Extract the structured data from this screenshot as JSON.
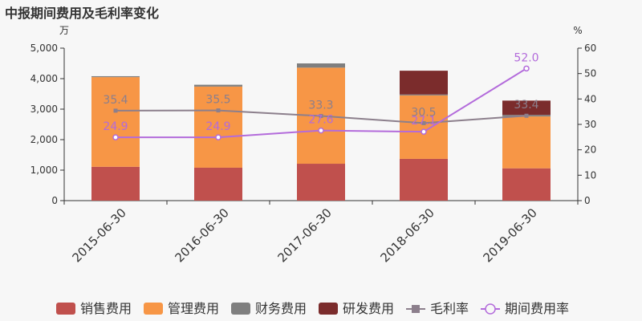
{
  "title": "中报期间费用及毛利率变化",
  "chart_data": {
    "type": "bar",
    "stacked": true,
    "categories": [
      "2015-06-30",
      "2016-06-30",
      "2017-06-30",
      "2018-06-30",
      "2019-06-30"
    ],
    "y_left": {
      "unit": "万",
      "range": [
        0,
        5000
      ],
      "ticks": [
        "0",
        "1,000",
        "2,000",
        "3,000",
        "4,000",
        "5,000"
      ]
    },
    "y_right": {
      "unit": "%",
      "range": [
        0,
        60
      ],
      "ticks": [
        "0",
        "10",
        "20",
        "30",
        "40",
        "50",
        "60"
      ]
    },
    "bar_series": [
      {
        "name": "销售费用",
        "color": "#c0504d",
        "values": [
          1110,
          1080,
          1210,
          1370,
          1060
        ]
      },
      {
        "name": "管理费用",
        "color": "#f79646",
        "values": [
          2940,
          2660,
          3150,
          2080,
          1700
        ]
      },
      {
        "name": "财务费用",
        "color": "#7f7f7f",
        "values": [
          30,
          60,
          140,
          30,
          50
        ]
      },
      {
        "name": "研发费用",
        "color": "#7b2c2c",
        "values": [
          0,
          0,
          0,
          780,
          470
        ]
      }
    ],
    "line_series": [
      {
        "name": "毛利率",
        "color": "#8c7f8c",
        "values": [
          35.4,
          35.5,
          33.3,
          30.5,
          33.4
        ],
        "labels": [
          "35.4",
          "35.5",
          "33.3",
          "30.5",
          "33.4"
        ]
      },
      {
        "name": "期间费用率",
        "color": "#b36bdb",
        "values": [
          24.9,
          24.9,
          27.6,
          27.1,
          52.0
        ],
        "labels": [
          "24.9",
          "24.9",
          "27.6",
          "27.1",
          "52.0"
        ]
      }
    ],
    "legend_position": "bottom",
    "grid": false
  }
}
